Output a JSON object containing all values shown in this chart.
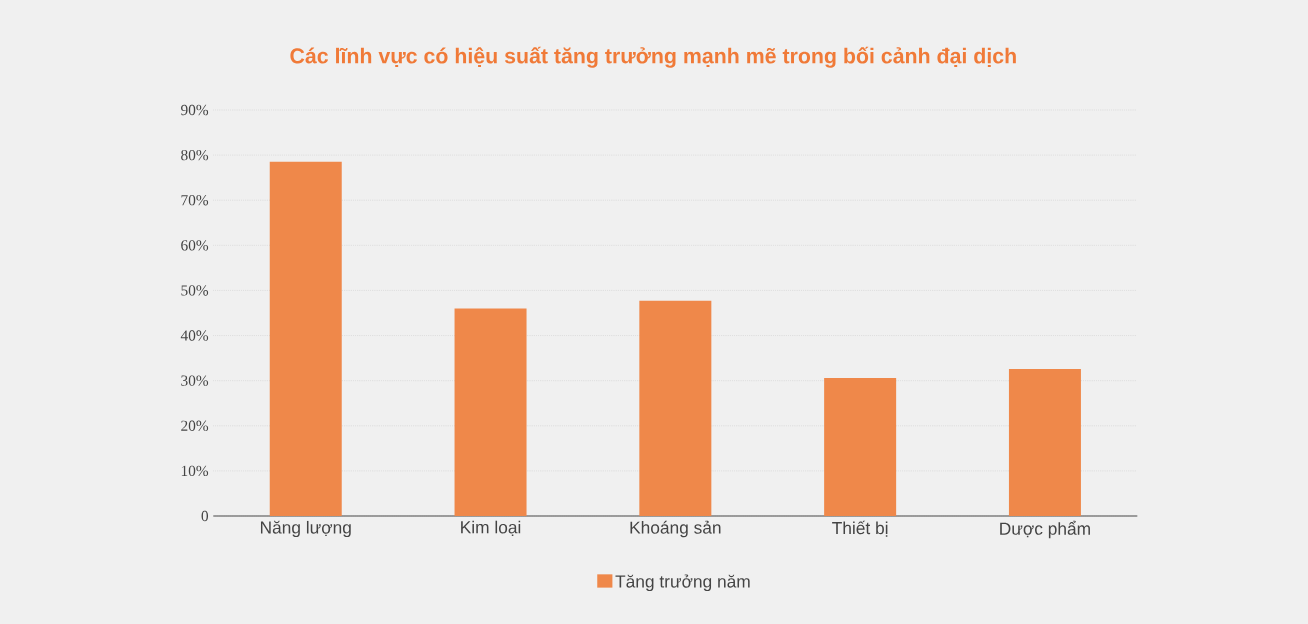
{
  "chart_data": {
    "type": "bar",
    "title": "Các lĩnh vực có hiệu suất tăng trưởng mạnh mẽ trong bối cảnh đại dịch",
    "categories": [
      "Năng lượng",
      "Kim loại",
      "Khoáng sản",
      "Thiết bị",
      "Dược phẩm"
    ],
    "series": [
      {
        "name": "Tăng trưởng năm",
        "color": "#ef884a",
        "values": [
          78.5,
          46,
          47.7,
          30.6,
          32.6
        ]
      }
    ],
    "ylim": [
      0,
      90
    ],
    "yticks": [
      {
        "value": 0,
        "label": "0"
      },
      {
        "value": 10,
        "label": "10%"
      },
      {
        "value": 20,
        "label": "20%"
      },
      {
        "value": 30,
        "label": "30%"
      },
      {
        "value": 40,
        "label": "40%"
      },
      {
        "value": 50,
        "label": "50%"
      },
      {
        "value": 60,
        "label": "60%"
      },
      {
        "value": 70,
        "label": "70%"
      },
      {
        "value": 80,
        "label": "80%"
      },
      {
        "value": 90,
        "label": "90%"
      }
    ],
    "grid": "y",
    "legend": "bottom"
  }
}
